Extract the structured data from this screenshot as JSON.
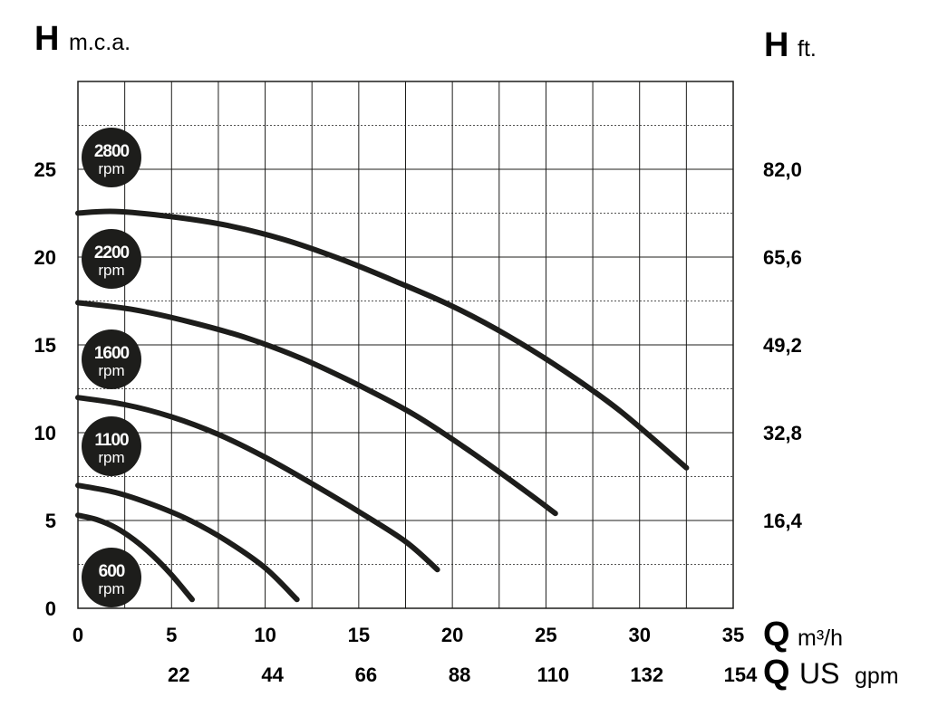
{
  "chart_data": {
    "type": "line",
    "y_left": {
      "symbol": "H",
      "unit": "m.c.a.",
      "ticks": [
        "0",
        "5",
        "10",
        "15",
        "20",
        "25"
      ],
      "ylim": [
        0,
        30
      ]
    },
    "y_right": {
      "symbol": "H",
      "unit": "ft.",
      "ticks": [
        "16,4",
        "32,8",
        "49,2",
        "65,6",
        "82,0"
      ]
    },
    "x_top": {
      "symbol": "Q",
      "unit": "m³/h",
      "ticks": [
        "0",
        "5",
        "10",
        "15",
        "20",
        "25",
        "30",
        "35"
      ],
      "xlim": [
        0,
        35
      ]
    },
    "x_bottom": {
      "symbol": "Q",
      "unit_big": "US",
      "unit_small": "gpm",
      "ticks": [
        "22",
        "44",
        "66",
        "88",
        "110",
        "132",
        "154"
      ]
    },
    "grid": true,
    "series": [
      {
        "name": "600 rpm",
        "rpm": "600",
        "rpm_label": "rpm",
        "points": [
          [
            0,
            5.3
          ],
          [
            1,
            5.05
          ],
          [
            2,
            4.6
          ],
          [
            3,
            3.9
          ],
          [
            4,
            3.0
          ],
          [
            5,
            1.9
          ],
          [
            6.1,
            0.5
          ]
        ]
      },
      {
        "name": "1100 rpm",
        "rpm": "1100",
        "rpm_label": "rpm",
        "points": [
          [
            0,
            7.0
          ],
          [
            2,
            6.6
          ],
          [
            4,
            5.9
          ],
          [
            6,
            5.0
          ],
          [
            8,
            3.8
          ],
          [
            10,
            2.3
          ],
          [
            11.7,
            0.5
          ]
        ]
      },
      {
        "name": "1600 rpm",
        "rpm": "1600",
        "rpm_label": "rpm",
        "points": [
          [
            0,
            12.0
          ],
          [
            2.5,
            11.6
          ],
          [
            5,
            10.9
          ],
          [
            7.5,
            9.9
          ],
          [
            10,
            8.6
          ],
          [
            12.5,
            7.1
          ],
          [
            15,
            5.5
          ],
          [
            17.5,
            3.8
          ],
          [
            19.2,
            2.2
          ]
        ]
      },
      {
        "name": "2200 rpm",
        "rpm": "2200",
        "rpm_label": "rpm",
        "points": [
          [
            0,
            17.4
          ],
          [
            3,
            17.0
          ],
          [
            6,
            16.3
          ],
          [
            9,
            15.4
          ],
          [
            12,
            14.2
          ],
          [
            15,
            12.7
          ],
          [
            18,
            11.0
          ],
          [
            21,
            8.9
          ],
          [
            24,
            6.6
          ],
          [
            25.5,
            5.4
          ]
        ]
      },
      {
        "name": "2800 rpm",
        "rpm": "2800",
        "rpm_label": "rpm",
        "points": [
          [
            0,
            22.5
          ],
          [
            2,
            22.6
          ],
          [
            5,
            22.3
          ],
          [
            8,
            21.8
          ],
          [
            11,
            21.0
          ],
          [
            14,
            19.9
          ],
          [
            17,
            18.6
          ],
          [
            20,
            17.2
          ],
          [
            23,
            15.5
          ],
          [
            26,
            13.5
          ],
          [
            29,
            11.2
          ],
          [
            32.5,
            8.0
          ]
        ]
      }
    ]
  }
}
